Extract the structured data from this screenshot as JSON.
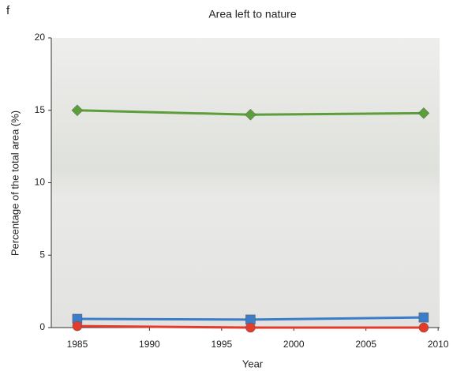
{
  "panel_label": "f",
  "chart_data": {
    "type": "line",
    "title": "Area left to nature",
    "x_label": "Year",
    "y_label": "Percentage of the total area (%)",
    "x": [
      1985,
      1997,
      2009
    ],
    "series": [
      {
        "color": "#5b9e3b",
        "marker": "diamond",
        "values": [
          15,
          14.7,
          14.8
        ]
      },
      {
        "color": "#3b7dc9",
        "marker": "square",
        "values": [
          0.6,
          0.55,
          0.7
        ]
      },
      {
        "color": "#e53b2b",
        "marker": "circle",
        "values": [
          0.1,
          0,
          0
        ]
      }
    ],
    "xlim": [
      1983.2,
      2010.1
    ],
    "xticks": [
      1985,
      1990,
      1995,
      2000,
      2005,
      2010
    ],
    "ylim": [
      0,
      20
    ],
    "yticks": [
      0,
      5,
      10,
      15,
      20
    ],
    "grid": false
  }
}
